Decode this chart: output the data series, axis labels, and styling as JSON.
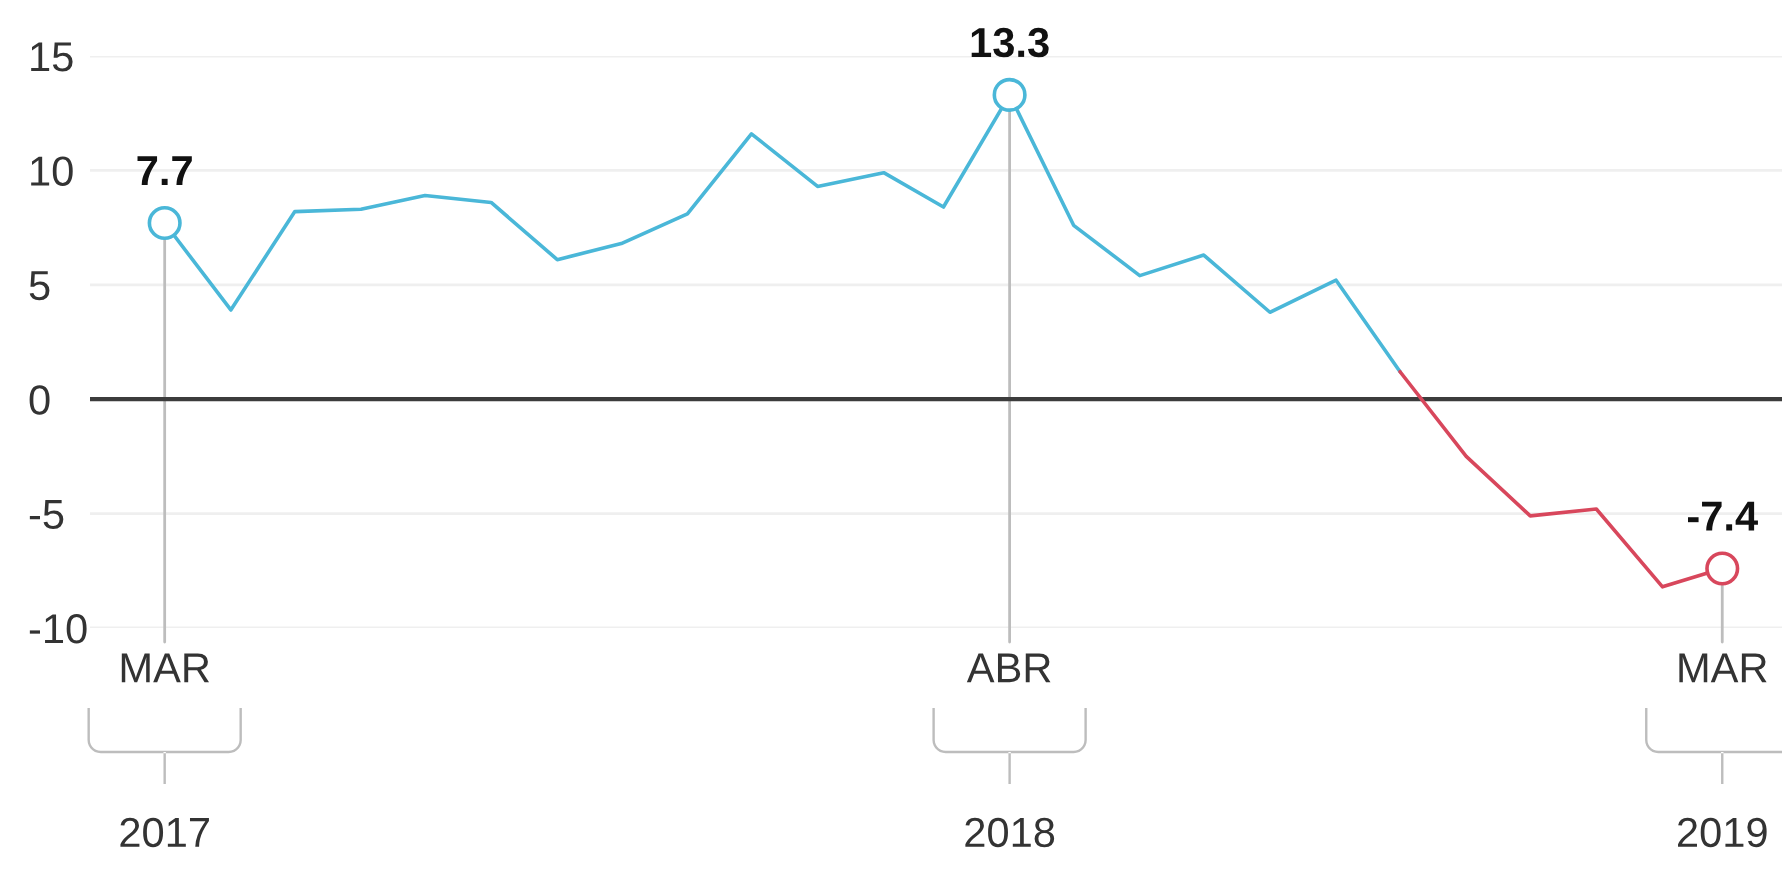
{
  "chart_data": {
    "type": "line",
    "x": [
      "2017-03",
      "2017-04",
      "2017-05",
      "2017-06",
      "2017-07",
      "2017-08",
      "2017-09",
      "2017-10",
      "2017-11",
      "2017-12",
      "2018-01",
      "2018-02",
      "2018-03",
      "2018-04",
      "2018-05",
      "2018-06",
      "2018-07",
      "2018-08",
      "2018-09",
      "2018-10",
      "2018-11",
      "2018-12",
      "2019-01",
      "2019-02",
      "2019-03"
    ],
    "series": [
      {
        "color": "#4ab7d8",
        "values": [
          7.7,
          3.9,
          8.2,
          8.3,
          8.9,
          8.6,
          6.1,
          6.8,
          8.1,
          11.6,
          9.3,
          9.9,
          8.4,
          13.3,
          7.6,
          5.4,
          6.3,
          3.8,
          5.2,
          1.2,
          null,
          null,
          null,
          null,
          null
        ]
      },
      {
        "color": "#d8475c",
        "values": [
          null,
          null,
          null,
          null,
          null,
          null,
          null,
          null,
          null,
          null,
          null,
          null,
          null,
          null,
          null,
          null,
          null,
          null,
          null,
          1.2,
          -2.5,
          -5.1,
          -4.8,
          -8.2,
          -7.4
        ]
      },
      {
        "type": "scatter",
        "marker": "circle",
        "x": [
          "2017-03",
          "2018-04",
          "2019-03"
        ],
        "colors": [
          "#4ab7d8",
          "#4ab7d8",
          "#d8475c"
        ],
        "values": [
          7.7,
          13.3,
          -7.4
        ],
        "value_labels": [
          "7.7",
          "13.3",
          "-7.4"
        ]
      }
    ],
    "xlim": [
      "2017-01-25",
      "2019-03-29"
    ],
    "xticks": [
      {
        "value": "2017-03",
        "label": "MAR"
      },
      {
        "value": "2018-04",
        "label": "ABR"
      },
      {
        "value": "2019-03",
        "label": "MAR"
      }
    ],
    "ylim": [
      -10,
      15
    ],
    "yticks": [
      -10,
      -5,
      0,
      5,
      10,
      15
    ],
    "grid": "y",
    "line_style": "solid",
    "ref_lines": [
      {
        "axis": "y",
        "value": 0,
        "color": "#3c3c3c"
      },
      {
        "axis": "x",
        "value": "2017-03",
        "color": "#bdbdbd"
      },
      {
        "axis": "x",
        "value": "2018-04",
        "color": "#bdbdbd"
      },
      {
        "axis": "x",
        "value": "2019-03",
        "color": "#bdbdbd"
      }
    ],
    "annotations": [
      "2017",
      "2018",
      "2019"
    ]
  }
}
